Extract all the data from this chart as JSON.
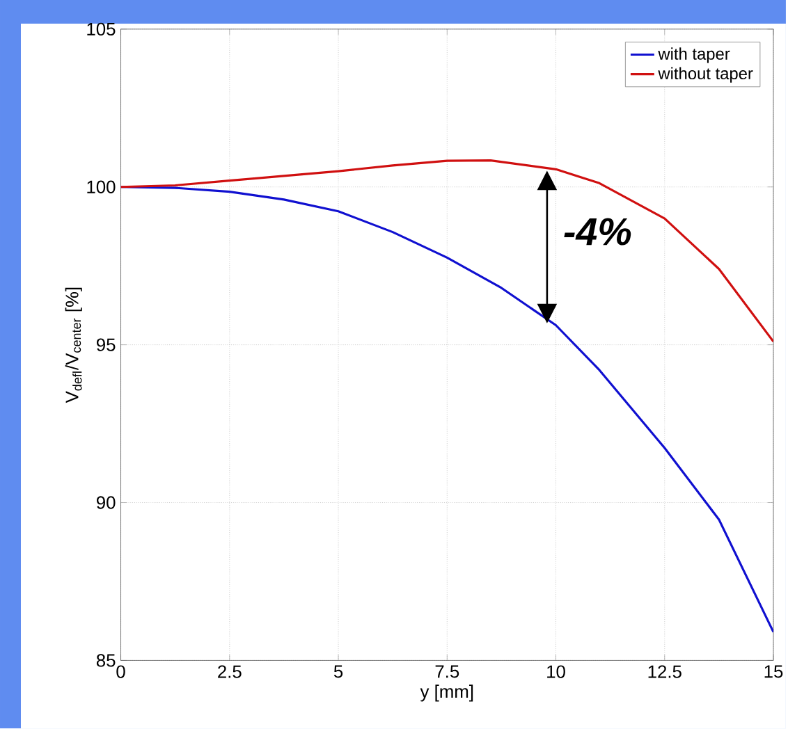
{
  "chart_data": {
    "type": "line",
    "xlabel": "y [mm]",
    "ylabel": "V$_{defl}$/V$_{center}$ [%]",
    "xlim": [
      0,
      15
    ],
    "ylim": [
      85,
      105
    ],
    "xticks": [
      0,
      2.5,
      5,
      7.5,
      10,
      12.5,
      15
    ],
    "yticks": [
      85,
      90,
      95,
      100,
      105
    ],
    "grid": true,
    "legend": "top right",
    "line_style": "solid",
    "series": [
      {
        "name": "with taper",
        "color": "#1010d0",
        "x": [
          0,
          1.25,
          2.5,
          3.75,
          5,
          6.25,
          7.5,
          8.75,
          10,
          11,
          12.5,
          13.75,
          15
        ],
        "values": [
          100,
          99.97,
          99.85,
          99.6,
          99.23,
          98.57,
          97.76,
          96.8,
          95.62,
          94.2,
          91.73,
          89.46,
          85.9
        ]
      },
      {
        "name": "without taper",
        "color": "#d01010",
        "x": [
          0,
          1.25,
          2.5,
          3.75,
          5,
          6.25,
          7.5,
          8.5,
          10,
          11,
          12.5,
          13.75,
          15
        ],
        "values": [
          100,
          100.05,
          100.2,
          100.35,
          100.5,
          100.68,
          100.83,
          100.84,
          100.56,
          100.12,
          99.0,
          97.4,
          95.1
        ]
      }
    ],
    "annotations": [
      "-4%"
    ]
  }
}
